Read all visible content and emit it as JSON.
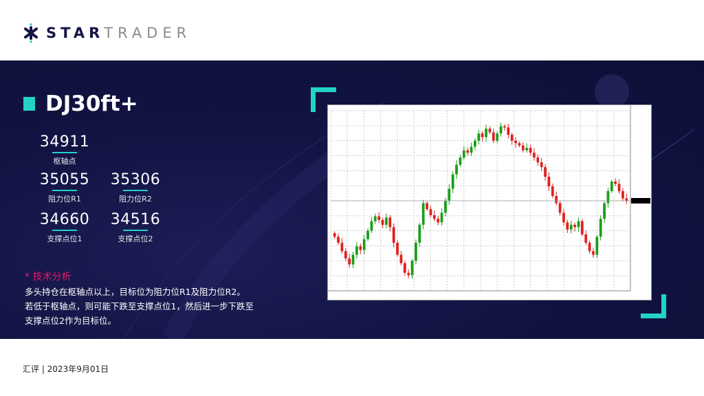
{
  "header": {
    "logo_bold": "STAR",
    "logo_light": "TRADER"
  },
  "main": {
    "instrument": "DJ30ft+",
    "levels": [
      {
        "value": "34911",
        "label": "枢轴点"
      },
      {
        "value": "35055",
        "label": "阻力位R1"
      },
      {
        "value": "35306",
        "label": "阻力位R2"
      },
      {
        "value": "34660",
        "label": "支撑点位1"
      },
      {
        "value": "34516",
        "label": "支撑点位2"
      }
    ],
    "analysis_title": "* 技术分析",
    "analysis_lines": [
      "多头持仓在枢轴点以上，目标位为阻力位R1及阻力位R2。",
      "若低于枢轴点，则可能下跌至支撑点位1，然后进一步下跌至",
      "支撑点位2作为目标位。"
    ],
    "accent": "#22d3c5",
    "highlight": "#e8196e",
    "background": "#111240"
  },
  "chart_data": {
    "type": "candlestick",
    "ylim": [
      33650,
      35150
    ],
    "grid": true,
    "up_color": "#1a9e1a",
    "down_color": "#e02020",
    "closes": [
      34100,
      34050,
      33980,
      33920,
      33870,
      33950,
      34020,
      33990,
      34080,
      34150,
      34230,
      34270,
      34240,
      34200,
      34260,
      34180,
      34050,
      33950,
      33880,
      33800,
      33780,
      33900,
      34050,
      34200,
      34380,
      34330,
      34280,
      34250,
      34220,
      34300,
      34400,
      34500,
      34620,
      34700,
      34760,
      34820,
      34800,
      34850,
      34900,
      34960,
      34930,
      35000,
      34970,
      34900,
      34960,
      35020,
      35010,
      34950,
      34900,
      34880,
      34860,
      34820,
      34840,
      34800,
      34760,
      34720,
      34680,
      34600,
      34520,
      34440,
      34380,
      34300,
      34220,
      34160,
      34200,
      34180,
      34230,
      34120,
      34050,
      33980,
      33950,
      34100,
      34250,
      34380,
      34480,
      34560,
      34540,
      34480,
      34420,
      34400
    ]
  },
  "footer": {
    "text": "汇评 | 2023年9月01日"
  }
}
